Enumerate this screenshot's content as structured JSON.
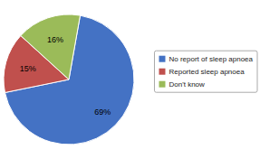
{
  "chart_data": {
    "type": "pie",
    "categories": [
      "No report of sleep apnoea",
      "Reported sleep apnoea",
      "Don't know"
    ],
    "values": [
      69,
      15,
      16
    ],
    "value_labels": [
      "69%",
      "15%",
      "16%"
    ],
    "colors": [
      "#4472C4",
      "#C0504D",
      "#9BBB59"
    ],
    "data_labels": true,
    "legend": "right"
  }
}
